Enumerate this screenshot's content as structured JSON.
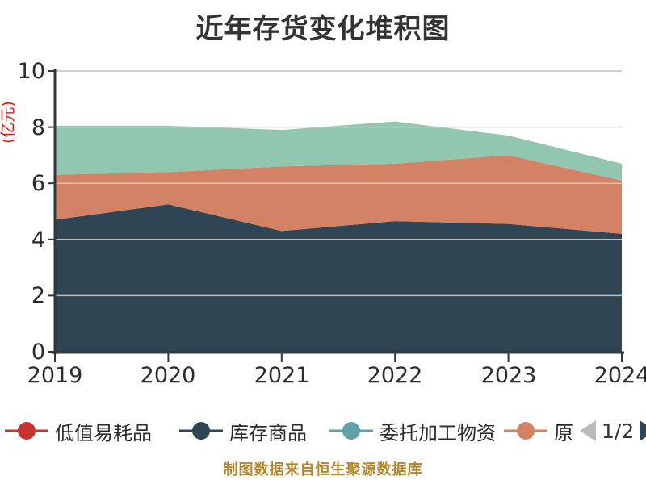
{
  "title": {
    "text": "近年存货变化堆积图",
    "color": "#333333"
  },
  "chart_data": {
    "type": "area",
    "stacked": true,
    "title": "近年存货变化堆积图",
    "categories": [
      "2019",
      "2020",
      "2021",
      "2022",
      "2023",
      "2024"
    ],
    "yticks": [
      "0",
      "2",
      "4",
      "6",
      "8",
      "10"
    ],
    "ylim": [
      0,
      10
    ],
    "ylabel": "(亿元)",
    "grid": true,
    "legend_position": "bottom",
    "series": [
      {
        "name": "低值易耗品",
        "color": "#c23531",
        "values": [
          0,
          0,
          0,
          0,
          0,
          0
        ]
      },
      {
        "name": "库存商品",
        "color": "#2f4554",
        "values": [
          4.7,
          5.25,
          4.3,
          4.65,
          4.55,
          4.2
        ]
      },
      {
        "name": "委托加工物资",
        "color": "#61a0a8",
        "values": [
          0,
          0,
          0,
          0,
          0,
          0
        ]
      },
      {
        "name": "原",
        "color": "#d48265",
        "values": [
          1.6,
          1.15,
          2.3,
          2.05,
          2.45,
          1.9
        ]
      },
      {
        "name": "",
        "color": "#91c7ae",
        "values": [
          1.75,
          1.65,
          1.3,
          1.5,
          0.7,
          0.6
        ]
      }
    ]
  },
  "axis": {
    "line_color": "#33373d",
    "grid_color": "#cccccc",
    "tick_label_color": "#2b2b2b",
    "unit_label_color": "#e21818"
  },
  "legend": {
    "items": [
      {
        "label": "低值易耗品",
        "color": "#c23531"
      },
      {
        "label": "库存商品",
        "color": "#2f4554"
      },
      {
        "label": "委托加工物资",
        "color": "#61a0a8"
      },
      {
        "label": "原",
        "color": "#d48265"
      }
    ],
    "pager": {
      "label": "1/2",
      "prev_color": "#b6bcc1",
      "next_color": "#2f4554",
      "label_color": "#333333"
    }
  },
  "caption": {
    "text": "制图数据来自恒生聚源数据库",
    "color": "#b2862d"
  }
}
